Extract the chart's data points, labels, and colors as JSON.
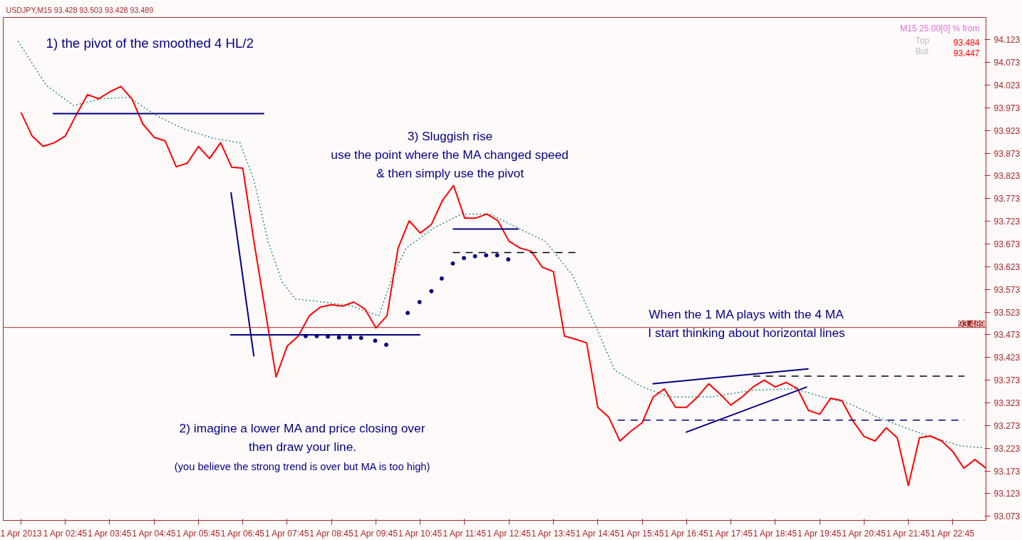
{
  "chart_data": {
    "type": "line",
    "title": "USDJPY,M15  93.428 93.503 93.428 93.489",
    "annotations": [
      "1) the pivot of the smoothed 4 HL/2",
      "3) Sluggish rise\nuse the point where the MA changed speed\n& then simply use the pivot",
      "When the 1 MA plays with the 4 MA\nI start thinking about horizontal lines",
      "2) imagine a lower MA and price closing over\nthen draw your line.\n(you believe the strong trend is over but MA is too high)",
      "M15 25.00[0] % from",
      "Top",
      "93.484",
      "Bot",
      "93.447"
    ],
    "xlim": [
      "2013-04-01T01:21",
      "2013-04-01T23:30"
    ],
    "ylim": [
      93.064,
      94.172
    ],
    "xticks": [
      {
        "value": "2013-04-01T01:45",
        "label": "1 Apr 2013"
      },
      {
        "value": "2013-04-01T02:45",
        "label": "1 Apr 02:45"
      },
      {
        "value": "2013-04-01T03:45",
        "label": "1 Apr 03:45"
      },
      {
        "value": "2013-04-01T04:45",
        "label": "1 Apr 04:45"
      },
      {
        "value": "2013-04-01T05:45",
        "label": "1 Apr 05:45"
      },
      {
        "value": "2013-04-01T06:45",
        "label": "1 Apr 06:45"
      },
      {
        "value": "2013-04-01T07:45",
        "label": "1 Apr 07:45"
      },
      {
        "value": "2013-04-01T08:45",
        "label": "1 Apr 08:45"
      },
      {
        "value": "2013-04-01T09:45",
        "label": "1 Apr 09:45"
      },
      {
        "value": "2013-04-01T10:45",
        "label": "1 Apr 10:45"
      },
      {
        "value": "2013-04-01T11:45",
        "label": "1 Apr 11:45"
      },
      {
        "value": "2013-04-01T12:45",
        "label": "1 Apr 12:45"
      },
      {
        "value": "2013-04-01T13:45",
        "label": "1 Apr 13:45"
      },
      {
        "value": "2013-04-01T14:45",
        "label": "1 Apr 14:45"
      },
      {
        "value": "2013-04-01T15:45",
        "label": "1 Apr 15:45"
      },
      {
        "value": "2013-04-01T16:45",
        "label": "1 Apr 16:45"
      },
      {
        "value": "2013-04-01T17:45",
        "label": "1 Apr 17:45"
      },
      {
        "value": "2013-04-01T18:45",
        "label": "1 Apr 18:45"
      },
      {
        "value": "2013-04-01T19:45",
        "label": "1 Apr 19:45"
      },
      {
        "value": "2013-04-01T20:45",
        "label": "1 Apr 20:45"
      },
      {
        "value": "2013-04-01T21:45",
        "label": "1 Apr 21:45"
      },
      {
        "value": "2013-04-01T22:45",
        "label": "1 Apr 22:45"
      }
    ],
    "yticks": [
      93.073,
      93.123,
      93.173,
      93.223,
      93.273,
      93.323,
      93.373,
      93.423,
      93.473,
      93.523,
      93.573,
      93.623,
      93.673,
      93.723,
      93.773,
      93.823,
      93.873,
      93.923,
      93.973,
      94.023,
      94.073,
      94.123
    ],
    "grid": false,
    "ref_lines": [
      {
        "axis": "y",
        "value": 93.489,
        "label": "93.489",
        "color": "#a52a2a"
      }
    ],
    "series": [
      {
        "color": "#2e8b8b",
        "line_style": "dotted",
        "x": [
          "2013-04-01T01:41",
          "2013-04-01T02:19",
          "2013-04-01T02:56",
          "2013-04-01T03:34",
          "2013-04-01T04:11",
          "2013-04-01T04:49",
          "2013-04-01T05:26",
          "2013-04-01T06:04",
          "2013-04-01T06:41",
          "2013-04-01T07:00",
          "2013-04-01T07:19",
          "2013-04-01T07:38",
          "2013-04-01T07:56",
          "2013-04-01T08:34",
          "2013-04-01T09:11",
          "2013-04-01T09:49",
          "2013-04-01T10:08",
          "2013-04-01T10:26",
          "2013-04-01T11:04",
          "2013-04-01T11:41",
          "2013-04-01T12:19",
          "2013-04-01T12:56",
          "2013-04-01T13:34",
          "2013-04-01T14:11",
          "2013-04-01T14:40",
          "2013-04-01T15:08",
          "2013-04-01T15:45",
          "2013-04-01T16:23",
          "2013-04-01T17:19",
          "2013-04-01T18:15",
          "2013-04-01T19:11",
          "2013-04-01T19:49",
          "2013-04-01T20:26",
          "2013-04-01T21:04",
          "2013-04-01T21:41",
          "2013-04-01T22:19",
          "2013-04-01T22:56",
          "2013-04-01T23:27"
        ],
        "values": [
          94.12,
          94.023,
          93.978,
          93.993,
          93.996,
          93.955,
          93.926,
          93.906,
          93.896,
          93.814,
          93.679,
          93.59,
          93.552,
          93.545,
          93.537,
          93.515,
          93.604,
          93.664,
          93.709,
          93.739,
          93.739,
          93.709,
          93.679,
          93.604,
          93.5,
          93.395,
          93.358,
          93.336,
          93.336,
          93.351,
          93.354,
          93.336,
          93.321,
          93.291,
          93.268,
          93.246,
          93.228,
          93.224
        ]
      },
      {
        "color": "#ff0000",
        "line_style": "solid",
        "x": [
          "2013-04-01T01:45",
          "2013-04-01T02:00",
          "2013-04-01T02:15",
          "2013-04-01T02:30",
          "2013-04-01T02:45",
          "2013-04-01T03:00",
          "2013-04-01T03:15",
          "2013-04-01T03:30",
          "2013-04-01T03:45",
          "2013-04-01T04:00",
          "2013-04-01T04:15",
          "2013-04-01T04:30",
          "2013-04-01T04:45",
          "2013-04-01T05:00",
          "2013-04-01T05:15",
          "2013-04-01T05:30",
          "2013-04-01T05:45",
          "2013-04-01T06:00",
          "2013-04-01T06:15",
          "2013-04-01T06:30",
          "2013-04-01T06:45",
          "2013-04-01T07:00",
          "2013-04-01T07:15",
          "2013-04-01T07:30",
          "2013-04-01T07:45",
          "2013-04-01T08:00",
          "2013-04-01T08:15",
          "2013-04-01T08:30",
          "2013-04-01T08:45",
          "2013-04-01T09:00",
          "2013-04-01T09:15",
          "2013-04-01T09:30",
          "2013-04-01T09:45",
          "2013-04-01T10:00",
          "2013-04-01T10:15",
          "2013-04-01T10:30",
          "2013-04-01T10:45",
          "2013-04-01T11:00",
          "2013-04-01T11:15",
          "2013-04-01T11:30",
          "2013-04-01T11:45",
          "2013-04-01T12:00",
          "2013-04-01T12:15",
          "2013-04-01T12:30",
          "2013-04-01T12:45",
          "2013-04-01T13:00",
          "2013-04-01T13:15",
          "2013-04-01T13:30",
          "2013-04-01T13:45",
          "2013-04-01T14:00",
          "2013-04-01T14:15",
          "2013-04-01T14:30",
          "2013-04-01T14:45",
          "2013-04-01T15:00",
          "2013-04-01T15:15",
          "2013-04-01T15:30",
          "2013-04-01T15:45",
          "2013-04-01T16:00",
          "2013-04-01T16:15",
          "2013-04-01T16:30",
          "2013-04-01T16:45",
          "2013-04-01T17:00",
          "2013-04-01T17:15",
          "2013-04-01T17:30",
          "2013-04-01T17:45",
          "2013-04-01T18:00",
          "2013-04-01T18:15",
          "2013-04-01T18:30",
          "2013-04-01T18:45",
          "2013-04-01T19:00",
          "2013-04-01T19:15",
          "2013-04-01T19:30",
          "2013-04-01T19:45",
          "2013-04-01T20:00",
          "2013-04-01T20:15",
          "2013-04-01T20:30",
          "2013-04-01T20:45",
          "2013-04-01T21:00",
          "2013-04-01T21:15",
          "2013-04-01T21:30",
          "2013-04-01T21:45",
          "2013-04-01T22:00",
          "2013-04-01T22:15",
          "2013-04-01T22:30",
          "2013-04-01T22:45",
          "2013-04-01T23:00",
          "2013-04-01T23:15",
          "2013-04-01T23:30"
        ],
        "values": [
          93.963,
          93.911,
          93.888,
          93.896,
          93.911,
          93.958,
          94.002,
          93.993,
          94.008,
          94.02,
          93.993,
          93.937,
          93.908,
          93.9,
          93.843,
          93.851,
          93.888,
          93.861,
          93.896,
          93.842,
          93.84,
          93.679,
          93.53,
          93.38,
          93.448,
          93.47,
          93.515,
          93.534,
          93.539,
          93.536,
          93.545,
          93.53,
          93.488,
          93.515,
          93.664,
          93.724,
          93.697,
          93.716,
          93.769,
          93.802,
          93.73,
          93.73,
          93.739,
          93.724,
          93.679,
          93.664,
          93.657,
          93.622,
          93.612,
          93.47,
          93.463,
          93.455,
          93.313,
          93.291,
          93.239,
          93.261,
          93.279,
          93.336,
          93.354,
          93.313,
          93.313,
          93.336,
          93.365,
          93.343,
          93.318,
          93.336,
          93.358,
          93.373,
          93.358,
          93.368,
          93.354,
          93.306,
          93.298,
          93.333,
          93.328,
          93.283,
          93.249,
          93.239,
          93.268,
          93.246,
          93.141,
          93.246,
          93.25,
          93.239,
          93.216,
          93.179,
          93.198,
          93.179
        ]
      },
      {
        "type": "scatter",
        "color": "#000080",
        "marker": "circle",
        "x": [
          "2013-04-01T08:10",
          "2013-04-01T08:25",
          "2013-04-01T08:40",
          "2013-04-01T08:55",
          "2013-04-01T09:10",
          "2013-04-01T09:25",
          "2013-04-01T09:44",
          "2013-04-01T09:59",
          "2013-04-01T10:28",
          "2013-04-01T10:44",
          "2013-04-01T11:00",
          "2013-04-01T11:14",
          "2013-04-01T11:29",
          "2013-04-01T11:44",
          "2013-04-01T11:59",
          "2013-04-01T12:14",
          "2013-04-01T12:29",
          "2013-04-01T12:44"
        ],
        "values": [
          93.47,
          93.47,
          93.469,
          93.467,
          93.467,
          93.466,
          93.46,
          93.451,
          93.521,
          93.545,
          93.569,
          93.597,
          93.63,
          93.642,
          93.646,
          93.648,
          93.648,
          93.639
        ]
      },
      {
        "color": "#000080",
        "line_style": "solid",
        "x": [
          "2013-04-01T02:28",
          "2013-04-01T07:14"
        ],
        "values": [
          93.96,
          93.96
        ]
      },
      {
        "color": "#000080",
        "line_style": "solid",
        "x": [
          "2013-04-01T06:28",
          "2013-04-01T10:45"
        ],
        "values": [
          93.473,
          93.473
        ]
      },
      {
        "color": "#000080",
        "line_style": "solid",
        "x": [
          "2013-04-01T11:29",
          "2013-04-01T12:58"
        ],
        "values": [
          93.706,
          93.706
        ]
      },
      {
        "color": "#000000",
        "line_style": "dashed",
        "x": [
          "2013-04-01T11:29",
          "2013-04-01T14:16"
        ],
        "values": [
          93.654,
          93.654
        ]
      },
      {
        "color": "#000080",
        "line_style": "solid",
        "x": [
          "2013-04-01T15:59",
          "2013-04-01T19:30"
        ],
        "values": [
          93.365,
          93.398
        ]
      },
      {
        "color": "#000080",
        "line_style": "solid",
        "x": [
          "2013-04-01T16:44",
          "2013-04-01T19:28"
        ],
        "values": [
          93.258,
          93.358
        ]
      },
      {
        "color": "#000000",
        "line_style": "dashed",
        "x": [
          "2013-04-01T18:15",
          "2013-04-01T23:01"
        ],
        "values": [
          93.382,
          93.382
        ]
      },
      {
        "color": "#000080",
        "line_style": "dashed",
        "x": [
          "2013-04-01T15:12",
          "2013-04-01T23:01"
        ],
        "values": [
          93.285,
          93.285
        ]
      },
      {
        "color": "#000080",
        "line_style": "solid",
        "x": [
          "2013-04-01T06:29",
          "2013-04-01T07:00"
        ],
        "values": [
          93.787,
          93.425
        ]
      }
    ]
  }
}
